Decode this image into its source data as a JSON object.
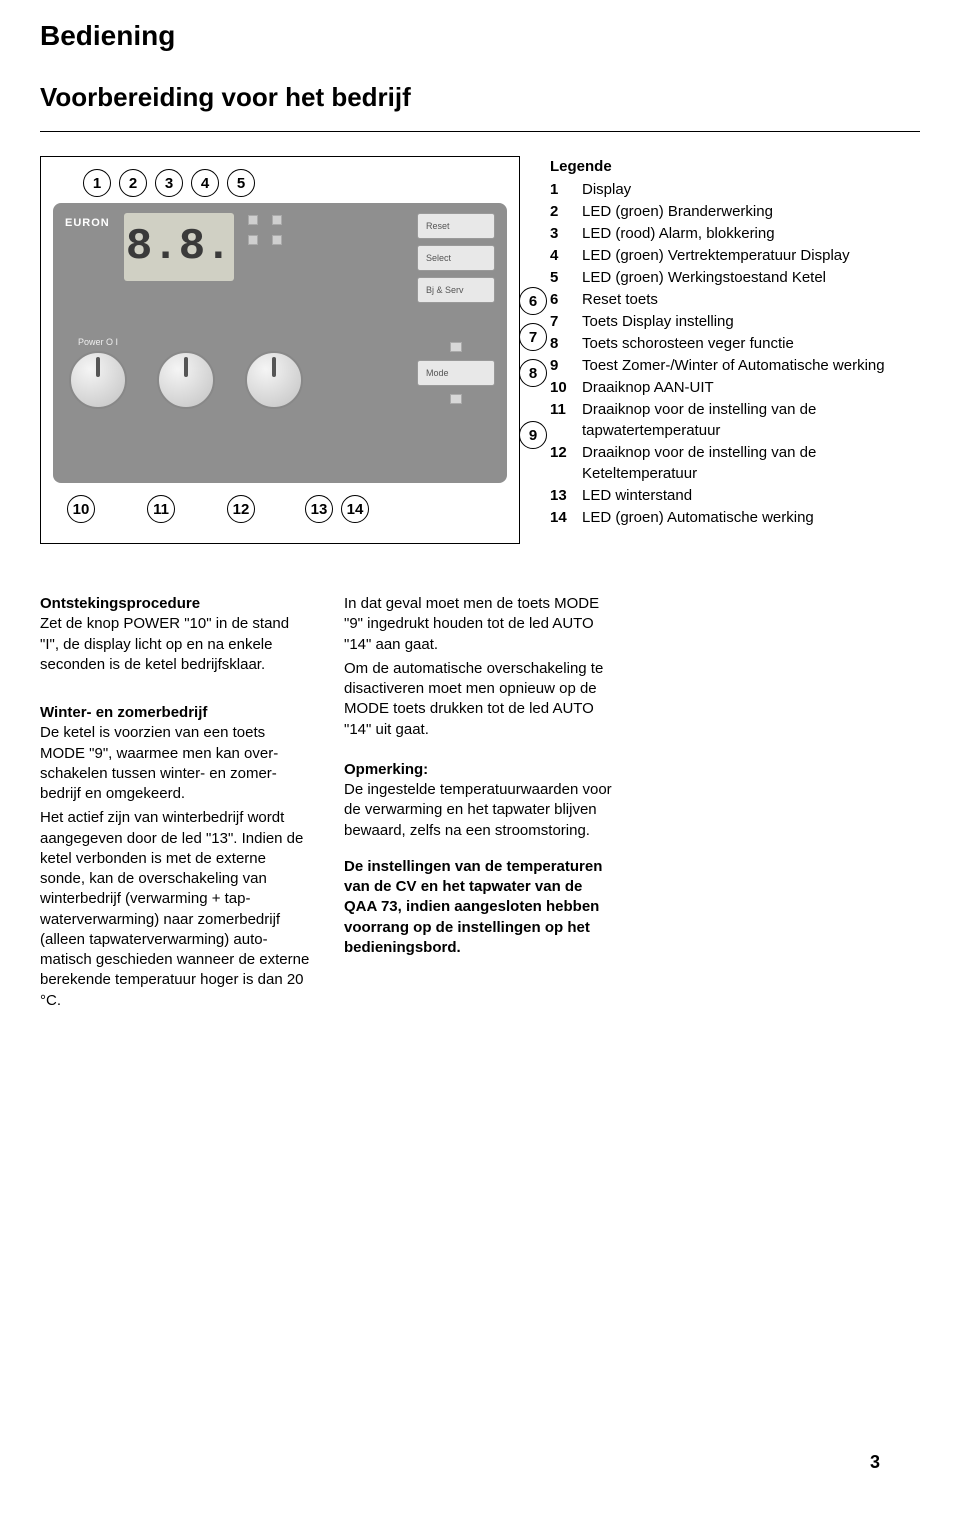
{
  "page": {
    "title": "Bediening",
    "subtitle": "Voorbereiding voor het bedrijf",
    "page_number": "3"
  },
  "diagram": {
    "euron": "EURON",
    "display_value": "8.8.",
    "buttons": {
      "reset": "Reset",
      "select": "Select",
      "bs": "Bj & Serv",
      "mode": "Mode"
    },
    "knobs": {
      "power": "Power  O   I",
      "cv": "",
      "tap": ""
    },
    "top_nums": [
      "1",
      "2",
      "3",
      "4",
      "5"
    ],
    "right_nums": [
      "6",
      "7",
      "8",
      "9"
    ],
    "bottom_nums_a": [
      "10",
      "11",
      "12"
    ],
    "bottom_nums_b": [
      "13",
      "14"
    ]
  },
  "legend": {
    "title": "Legende",
    "items": [
      {
        "n": "1",
        "t": "Display"
      },
      {
        "n": "2",
        "t": "LED (groen) Branderwerking"
      },
      {
        "n": "3",
        "t": "LED (rood) Alarm, blokkering"
      },
      {
        "n": "4",
        "t": "LED (groen) Vertrektemperatuur Display"
      },
      {
        "n": "5",
        "t": "LED (groen) Werkingstoestand Ketel"
      },
      {
        "n": "6",
        "t": "Reset toets"
      },
      {
        "n": "7",
        "t": "Toets Display instelling"
      },
      {
        "n": "8",
        "t": "Toets schorosteen veger functie"
      },
      {
        "n": "9",
        "t": "Toest Zomer-/Winter of Automatische werking"
      },
      {
        "n": "10",
        "t": "Draaiknop AAN-UIT"
      },
      {
        "n": "11",
        "t": "Draaiknop voor de instelling van de tapwatertemperatuur"
      },
      {
        "n": "12",
        "t": "Draaiknop  voor de instelling van de Keteltemperatuur"
      },
      {
        "n": "13",
        "t": "LED winterstand"
      },
      {
        "n": "14",
        "t": "LED (groen) Automatische werking"
      }
    ]
  },
  "body": {
    "col1": {
      "p1_title": "Ontstekingsprocedure",
      "p1_text": "Zet de knop POWER  \"10\" in de stand \"I\", de display licht op en na enkele seconden is de ketel bedrijfsklaar.",
      "p2_title": "Winter- en zomerbedrijf",
      "p2_text": "De ketel is voorzien van een toets MODE \"9\", waarmee men kan over­schakelen tussen winter- en zomer­bedrijf en omgekeerd.",
      "p3_text": "Het actief zijn van winterbedrijf wordt aangegeven door de led \"13\". Indien de ketel verbonden is met de externe sonde, kan de overschakeling van winterbedrijf (verwarming + tap­waterverwarming) naar zomerbedrijf (alleen tapwaterverwarming) auto­matisch geschieden wanneer de externe berekende temperatuur hoger is dan 20 °C."
    },
    "col2": {
      "p1_text": "In dat geval moet men de toets MODE \"9\" ingedrukt houden tot de led AUTO \"14\" aan gaat.",
      "p2_text": "Om de automatische overschakeling te disactiveren moet men opnieuw op de MODE toets drukken tot de led AUTO \"14\" uit gaat.",
      "p3_title": "Opmerking:",
      "p3_text": "De ingestelde temperatuurwaarden voor de verwarming en het tapwater blijven bewaard, zelfs na een stroom­storing.",
      "p4_text": "De instellingen van de tempera­turen van de CV en het tapwater van de QAA 73, indien aangesloten hebben voorrang op de instellingen op het bedieningsbord."
    }
  }
}
